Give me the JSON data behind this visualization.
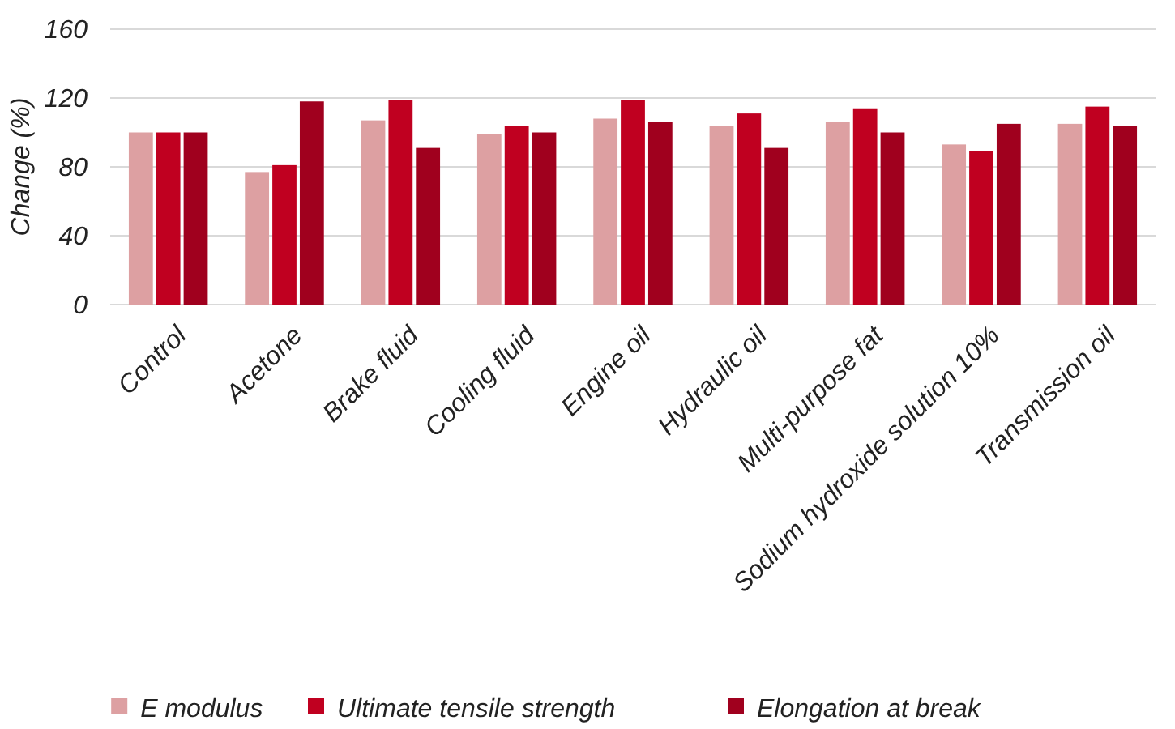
{
  "chart_data": {
    "type": "bar",
    "ylabel": "Change (%)",
    "categories": [
      "Control",
      "Acetone",
      "Brake fluid",
      "Cooling fluid",
      "Engine oil",
      "Hydraulic oil",
      "Multi-purpose fat",
      "Sodium hydroxide solution 10%",
      "Transmission oil"
    ],
    "series": [
      {
        "name": "E modulus",
        "color": "#dda0a2",
        "values": [
          100,
          77,
          107,
          99,
          108,
          104,
          106,
          93,
          105
        ]
      },
      {
        "name": "Ultimate tensile strength",
        "color": "#c00020",
        "values": [
          100,
          81,
          119,
          104,
          119,
          111,
          114,
          89,
          115
        ]
      },
      {
        "name": "Elongation at break",
        "color": "#a0001e",
        "values": [
          100,
          118,
          91,
          100,
          106,
          91,
          100,
          105,
          104
        ]
      }
    ],
    "ylim": [
      0,
      160
    ],
    "yticks": [
      0,
      40,
      80,
      120,
      160
    ],
    "grid": "y",
    "legend": "bottom"
  }
}
